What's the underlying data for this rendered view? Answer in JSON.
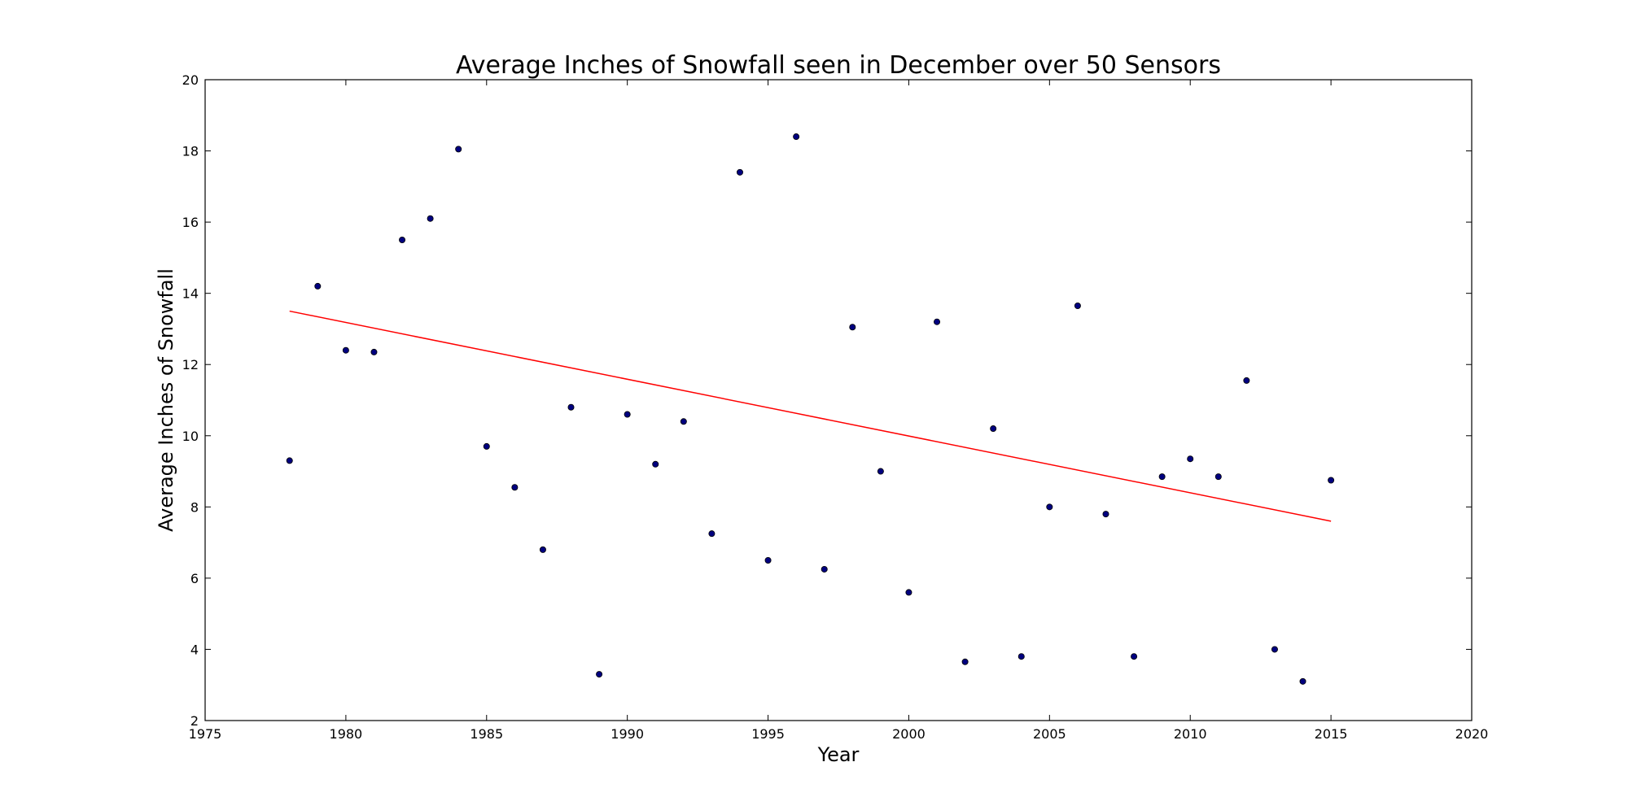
{
  "chart_data": {
    "type": "scatter",
    "title": "Average Inches of Snowfall seen in December over 50 Sensors",
    "xlabel": "Year",
    "ylabel": "Average Inches of Snowfall",
    "xlim": [
      1975,
      2020
    ],
    "ylim": [
      2,
      20
    ],
    "xticks": [
      1975,
      1980,
      1985,
      1990,
      1995,
      2000,
      2005,
      2010,
      2015,
      2020
    ],
    "yticks": [
      2,
      4,
      6,
      8,
      10,
      12,
      14,
      16,
      18,
      20
    ],
    "grid": false,
    "series": [
      {
        "type": "scatter",
        "color": "#00007f",
        "x": [
          1978,
          1979,
          1980,
          1981,
          1982,
          1983,
          1984,
          1985,
          1986,
          1987,
          1988,
          1989,
          1990,
          1991,
          1992,
          1993,
          1994,
          1995,
          1996,
          1997,
          1998,
          1999,
          2000,
          2001,
          2002,
          2003,
          2004,
          2005,
          2006,
          2007,
          2008,
          2009,
          2010,
          2011,
          2012,
          2013,
          2014,
          2015
        ],
        "y": [
          9.3,
          14.2,
          12.4,
          12.35,
          15.5,
          16.1,
          18.05,
          9.7,
          8.55,
          6.8,
          10.8,
          3.3,
          10.6,
          9.2,
          10.4,
          7.25,
          17.4,
          6.5,
          18.4,
          6.25,
          13.05,
          9.0,
          5.6,
          13.2,
          3.65,
          10.2,
          3.8,
          8.0,
          13.65,
          7.8,
          3.8,
          8.85,
          9.35,
          8.85,
          11.55,
          4.0,
          3.1,
          8.75
        ]
      },
      {
        "type": "line",
        "color": "#ff0000",
        "x": [
          1978,
          2015
        ],
        "y": [
          13.5,
          7.6
        ]
      }
    ]
  }
}
